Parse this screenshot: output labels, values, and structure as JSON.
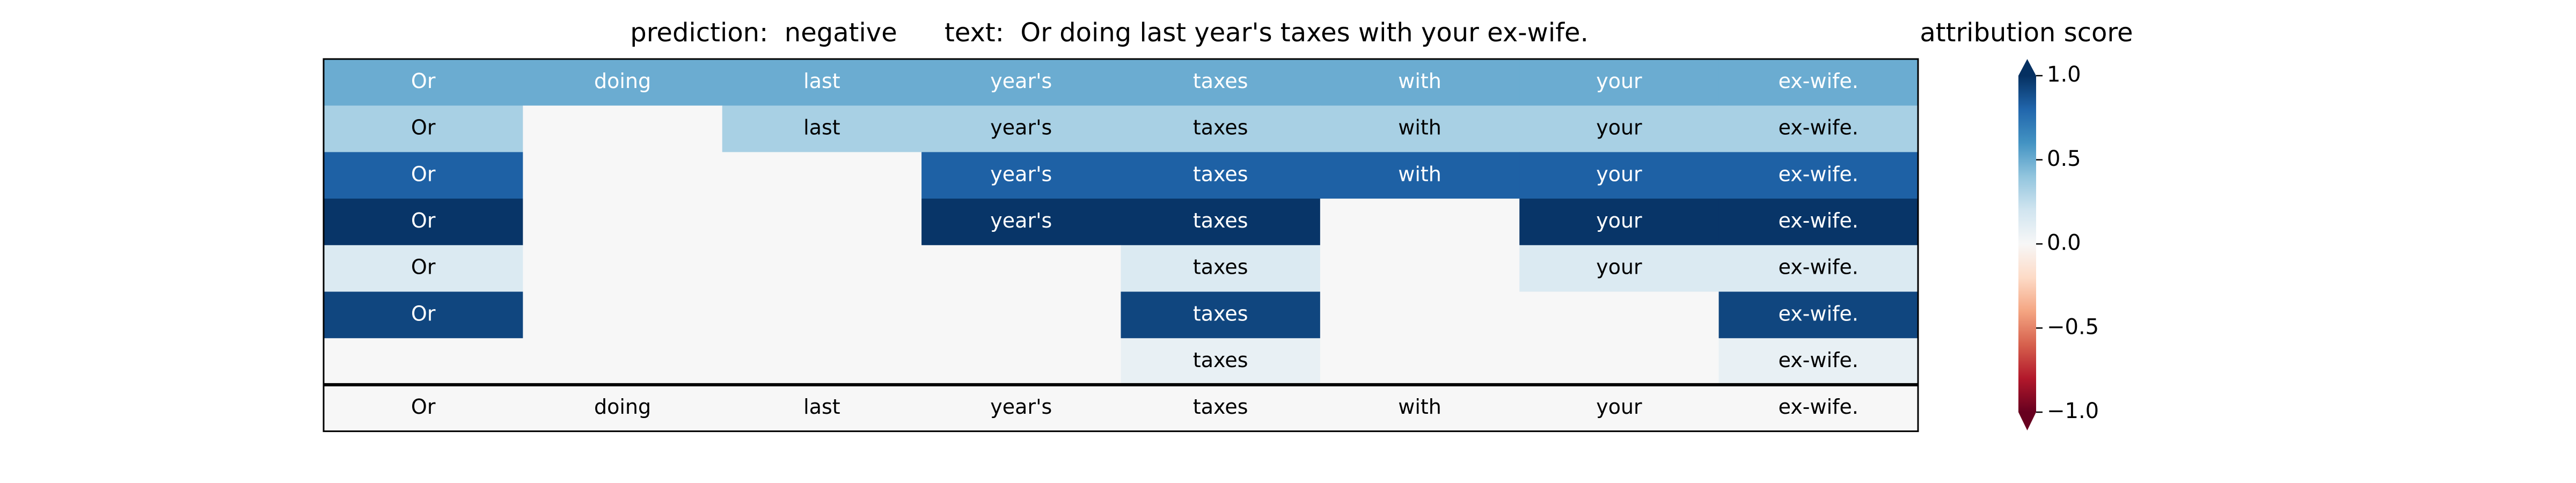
{
  "chart_data": {
    "type": "heatmap",
    "title_prediction": "prediction:  negative",
    "title_text": "text:  Or doing last year's taxes with your ex-wife.",
    "colorbar_title": "attribution score",
    "colormap": [
      "#67001f",
      "#b2182b",
      "#d6604d",
      "#f4a582",
      "#fddbc7",
      "#f7f7f7",
      "#d1e5f0",
      "#92c5de",
      "#4393c3",
      "#2166ac",
      "#053061"
    ],
    "clim": [
      -1,
      1
    ],
    "cticks": [
      {
        "value": 1,
        "label": "1.0"
      },
      {
        "value": 0.5,
        "label": "0.5"
      },
      {
        "value": 0,
        "label": "0.0"
      },
      {
        "value": -0.5,
        "label": "−0.5"
      },
      {
        "value": -1,
        "label": "−1.0"
      }
    ],
    "rows": [
      {
        "tokens": [
          "Or",
          "doing",
          "last",
          "year's",
          "taxes",
          "with",
          "your",
          "ex-wife."
        ],
        "values": [
          0.5,
          0.5,
          0.5,
          0.5,
          0.5,
          0.5,
          0.5,
          0.5
        ]
      },
      {
        "tokens": [
          "Or",
          null,
          "last",
          "year's",
          "taxes",
          "with",
          "your",
          "ex-wife."
        ],
        "values": [
          0.33,
          0,
          0.33,
          0.33,
          0.33,
          0.33,
          0.33,
          0.33
        ]
      },
      {
        "tokens": [
          "Or",
          null,
          null,
          "year's",
          "taxes",
          "with",
          "your",
          "ex-wife."
        ],
        "values": [
          0.82,
          0,
          0,
          0.82,
          0.82,
          0.82,
          0.82,
          0.82
        ]
      },
      {
        "tokens": [
          "Or",
          null,
          null,
          "year's",
          "taxes",
          null,
          "your",
          "ex-wife."
        ],
        "values": [
          0.98,
          0,
          0,
          0.98,
          0.98,
          0,
          0.98,
          0.98
        ]
      },
      {
        "tokens": [
          "Or",
          null,
          null,
          null,
          "taxes",
          null,
          "your",
          "ex-wife."
        ],
        "values": [
          0.15,
          0,
          0,
          0,
          0.15,
          0,
          0.15,
          0.15
        ]
      },
      {
        "tokens": [
          "Or",
          null,
          null,
          null,
          "taxes",
          null,
          null,
          "ex-wife."
        ],
        "values": [
          0.92,
          0,
          0,
          0,
          0.92,
          0,
          0,
          0.92
        ]
      },
      {
        "tokens": [
          null,
          null,
          null,
          null,
          "taxes",
          null,
          null,
          "ex-wife."
        ],
        "values": [
          0,
          0,
          0,
          0,
          0.08,
          0,
          0,
          0.08
        ]
      }
    ],
    "input_tokens": [
      "Or",
      "doing",
      "last",
      "year's",
      "taxes",
      "with",
      "your",
      "ex-wife."
    ]
  }
}
